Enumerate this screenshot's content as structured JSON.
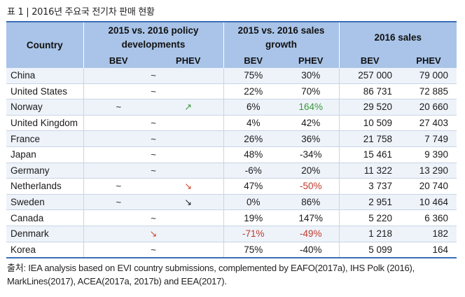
{
  "caption": "표 1 | 2016년 주요국 전기차 판매 현황",
  "headers": {
    "country": "Country",
    "policy_line1": "2015 vs. 2016 policy",
    "policy_line2": "developments",
    "growth_line1": "2015 vs. 2016 sales",
    "growth_line2": "growth",
    "sales": "2016 sales",
    "bev": "BEV",
    "phev": "PHEV"
  },
  "rows": [
    {
      "country": "China",
      "policy_bev": "~",
      "policy_phev": "",
      "policy_span": true,
      "growth_bev": "75%",
      "growth_phev": "30%",
      "sales_bev": "257 000",
      "sales_phev": "79 000"
    },
    {
      "country": "United States",
      "policy_bev": "~",
      "policy_phev": "",
      "policy_span": true,
      "growth_bev": "22%",
      "growth_phev": "70%",
      "sales_bev": "86 731",
      "sales_phev": "72 885"
    },
    {
      "country": "Norway",
      "policy_bev": "~",
      "policy_phev": "↗",
      "policy_span": false,
      "growth_bev": "6%",
      "growth_phev": "164%",
      "sales_bev": "29 520",
      "sales_phev": "20 660"
    },
    {
      "country": "United Kingdom",
      "policy_bev": "~",
      "policy_phev": "",
      "policy_span": true,
      "growth_bev": "4%",
      "growth_phev": "42%",
      "sales_bev": "10 509",
      "sales_phev": "27 403"
    },
    {
      "country": "France",
      "policy_bev": "~",
      "policy_phev": "",
      "policy_span": true,
      "growth_bev": "26%",
      "growth_phev": "36%",
      "sales_bev": "21 758",
      "sales_phev": "7 749"
    },
    {
      "country": "Japan",
      "policy_bev": "~",
      "policy_phev": "",
      "policy_span": true,
      "growth_bev": "48%",
      "growth_phev": "-34%",
      "sales_bev": "15 461",
      "sales_phev": "9 390"
    },
    {
      "country": "Germany",
      "policy_bev": "~",
      "policy_phev": "",
      "policy_span": true,
      "growth_bev": "-6%",
      "growth_phev": "20%",
      "sales_bev": "11 322",
      "sales_phev": "13 290"
    },
    {
      "country": "Netherlands",
      "policy_bev": "~",
      "policy_phev": "↘",
      "policy_span": false,
      "growth_bev": "47%",
      "growth_phev": "-50%",
      "sales_bev": "3 737",
      "sales_phev": "20 740"
    },
    {
      "country": "Sweden",
      "policy_bev": "~",
      "policy_phev": "↘",
      "policy_span": false,
      "growth_bev": "0%",
      "growth_phev": "86%",
      "sales_bev": "2 951",
      "sales_phev": "10 464"
    },
    {
      "country": "Canada",
      "policy_bev": "~",
      "policy_phev": "",
      "policy_span": true,
      "growth_bev": "19%",
      "growth_phev": "147%",
      "sales_bev": "5 220",
      "sales_phev": "6 360"
    },
    {
      "country": "Denmark",
      "policy_bev": "↘",
      "policy_phev": "",
      "policy_span": true,
      "growth_bev": "-71%",
      "growth_phev": "-49%",
      "sales_bev": "1 218",
      "sales_phev": "182"
    },
    {
      "country": "Korea",
      "policy_bev": "~",
      "policy_phev": "",
      "policy_span": true,
      "growth_bev": "75%",
      "growth_phev": "-40%",
      "sales_bev": "5 099",
      "sales_phev": "164"
    }
  ],
  "colors": {
    "header_bg": "#a9c4e8",
    "rule": "#3c6db5",
    "odd_row": "#eef3fa",
    "positive_highlight": "#3a9a3a",
    "negative_highlight": "#c0392b"
  },
  "highlights": {
    "green_cells": [
      "Norway.growth_phev"
    ],
    "red_cells": [
      "Netherlands.growth_phev",
      "Denmark.growth_bev",
      "Denmark.growth_phev"
    ],
    "arrow_colors": {
      "Norway": "green",
      "Netherlands": "red",
      "Sweden": "dark",
      "Denmark": "red"
    }
  },
  "note_line1": "출처: IEA analysis based on EVI country submissions, complemented by EAFO(2017a), IHS Polk (2016),",
  "note_line2": "MarkLines(2017), ACEA(2017a, 2017b) and EEA(2017)."
}
